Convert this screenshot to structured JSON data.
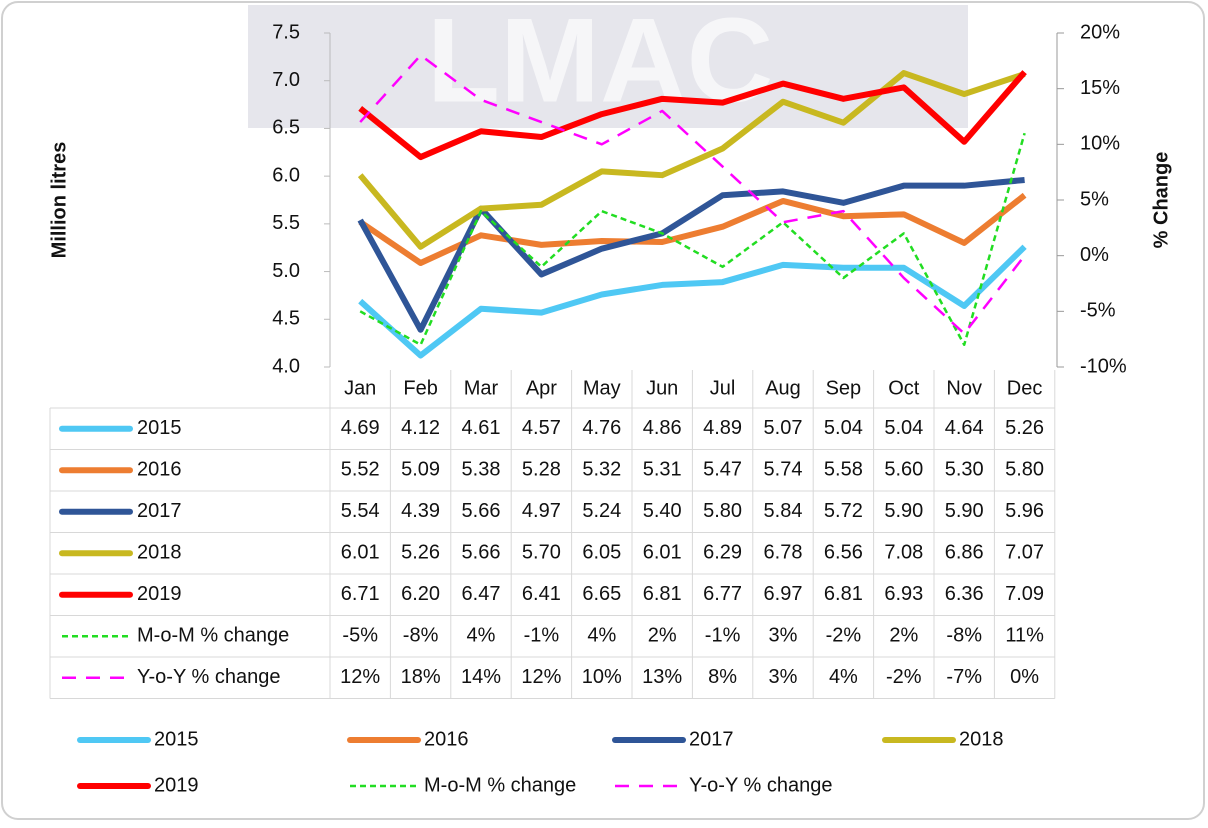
{
  "chart_data": {
    "type": "line",
    "watermark": "LMAC",
    "y_label": "Million litres",
    "y2_label": "% Change",
    "categories": [
      "Jan",
      "Feb",
      "Mar",
      "Apr",
      "May",
      "Jun",
      "Jul",
      "Aug",
      "Sep",
      "Oct",
      "Nov",
      "Dec"
    ],
    "ylim": [
      4,
      7.5
    ],
    "yticks": [
      {
        "value": 4,
        "label": "4.0"
      },
      4.5,
      {
        "value": 5,
        "label": "5.0"
      },
      5.5,
      {
        "value": 6,
        "label": "6.0"
      },
      6.5,
      {
        "value": 7,
        "label": "7.0"
      },
      7.5
    ],
    "y2lim": [
      -10,
      20
    ],
    "y2ticks": [
      {
        "value": -10,
        "label": "-10%"
      },
      {
        "value": -5,
        "label": "-5%"
      },
      {
        "value": 0,
        "label": "0%"
      },
      {
        "value": 5,
        "label": "5%"
      },
      {
        "value": 10,
        "label": "10%"
      },
      {
        "value": 15,
        "label": "15%"
      },
      {
        "value": 20,
        "label": "20%"
      }
    ],
    "series": [
      {
        "name": "2015",
        "color": "#4fc8f4",
        "values": [
          4.69,
          4.12,
          4.61,
          4.57,
          4.76,
          4.86,
          4.89,
          5.07,
          5.04,
          5.04,
          4.64,
          5.26
        ],
        "value_labels": [
          "4.69",
          "4.12",
          "4.61",
          "4.57",
          "4.76",
          "4.86",
          "4.89",
          "5.07",
          "5.04",
          "5.04",
          "4.64",
          "5.26"
        ]
      },
      {
        "name": "2016",
        "color": "#ed7d31",
        "values": [
          5.52,
          5.09,
          5.38,
          5.28,
          5.32,
          5.31,
          5.47,
          5.74,
          5.58,
          5.6,
          5.3,
          5.8
        ],
        "value_labels": [
          "5.52",
          "5.09",
          "5.38",
          "5.28",
          "5.32",
          "5.31",
          "5.47",
          "5.74",
          "5.58",
          "5.60",
          "5.30",
          "5.80"
        ]
      },
      {
        "name": "2017",
        "color": "#2f5597",
        "values": [
          5.54,
          4.39,
          5.66,
          4.97,
          5.24,
          5.4,
          5.8,
          5.84,
          5.72,
          5.9,
          5.9,
          5.96
        ],
        "value_labels": [
          "5.54",
          "4.39",
          "5.66",
          "4.97",
          "5.24",
          "5.40",
          "5.80",
          "5.84",
          "5.72",
          "5.90",
          "5.90",
          "5.96"
        ]
      },
      {
        "name": "2018",
        "color": "#c8b820",
        "values": [
          6.01,
          5.26,
          5.66,
          5.7,
          6.05,
          6.01,
          6.29,
          6.78,
          6.56,
          7.08,
          6.86,
          7.07
        ],
        "value_labels": [
          "6.01",
          "5.26",
          "5.66",
          "5.70",
          "6.05",
          "6.01",
          "6.29",
          "6.78",
          "6.56",
          "7.08",
          "6.86",
          "7.07"
        ]
      },
      {
        "name": "2019",
        "color": "#ff0000",
        "values": [
          6.71,
          6.2,
          6.47,
          6.41,
          6.65,
          6.81,
          6.77,
          6.97,
          6.81,
          6.93,
          6.36,
          7.09
        ],
        "value_labels": [
          "6.71",
          "6.20",
          "6.47",
          "6.41",
          "6.65",
          "6.81",
          "6.77",
          "6.97",
          "6.81",
          "6.93",
          "6.36",
          "7.09"
        ]
      },
      {
        "name": "M-o-M % change",
        "color": "#22dd22",
        "axis": "y2",
        "style": "dotted",
        "values": [
          -5,
          -8,
          4,
          -1,
          4,
          2,
          -1,
          3,
          -2,
          2,
          -8,
          11
        ],
        "value_labels": [
          "-5%",
          "-8%",
          "4%",
          "-1%",
          "4%",
          "2%",
          "-1%",
          "3%",
          "-2%",
          "2%",
          "-8%",
          "11%"
        ]
      },
      {
        "name": "Y-o-Y % change",
        "color": "#ff00ff",
        "axis": "y2",
        "style": "dashed",
        "values": [
          12,
          18,
          14,
          12,
          10,
          13,
          8,
          3,
          4,
          -2,
          -7,
          0
        ],
        "value_labels": [
          "12%",
          "18%",
          "14%",
          "12%",
          "10%",
          "13%",
          "8%",
          "3%",
          "4%",
          "-2%",
          "-7%",
          "0%"
        ]
      }
    ]
  }
}
